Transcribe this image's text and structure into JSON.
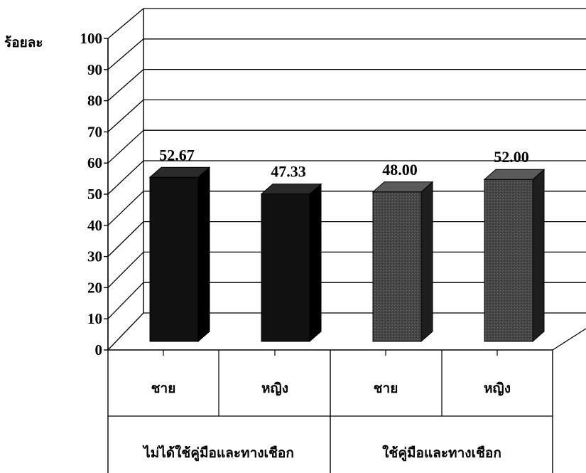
{
  "chart_data": {
    "type": "bar",
    "ylabel": "ร้อยละ",
    "ylim": [
      0,
      100
    ],
    "yticks": [
      0,
      10,
      20,
      30,
      40,
      50,
      60,
      70,
      80,
      90,
      100
    ],
    "grid": true,
    "three_d": true,
    "categories": [
      "ชาย",
      "หญิง",
      "ชาย",
      "หญิง"
    ],
    "groups": [
      {
        "label": "ไม่ได้ใช้คู่มือและทางเชือก",
        "categories": [
          "ชาย",
          "หญิง"
        ]
      },
      {
        "label": "ใช้คู่มือและทางเชือก",
        "categories": [
          "ชาย",
          "หญิง"
        ]
      }
    ],
    "values": [
      52.67,
      47.33,
      48.0,
      52.0
    ],
    "data_labels": [
      "52.67",
      "47.33",
      "48.00",
      "52.00"
    ],
    "bar_colors": [
      "#111111",
      "#111111",
      "#4a4a4a",
      "#4a4a4a"
    ]
  }
}
